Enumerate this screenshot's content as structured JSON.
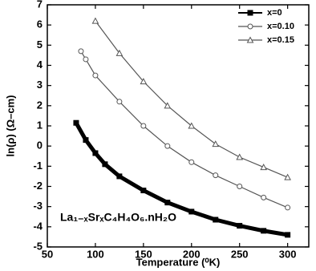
{
  "chart_data": {
    "type": "line",
    "xlabel": "Temperature (⁰K)",
    "ylabel": "ln(ρ) (Ω–cm)",
    "annotation": "La₁₋ₓSrₓC₄H₄O₆.nH₂O",
    "xlim": [
      50,
      322
    ],
    "ylim": [
      -5,
      7
    ],
    "xticks": [
      50,
      100,
      150,
      200,
      250,
      300
    ],
    "yticks": [
      -5,
      -4,
      -3,
      -2,
      -1,
      0,
      1,
      2,
      3,
      4,
      5,
      6,
      7
    ],
    "legend": "upper right",
    "series": [
      {
        "name": "x=0",
        "color": "#000000",
        "marker": "square-filled",
        "x": [
          80,
          90,
          100,
          110,
          125,
          150,
          175,
          200,
          225,
          250,
          275,
          300
        ],
        "values": [
          1.15,
          0.3,
          -0.35,
          -0.9,
          -1.5,
          -2.2,
          -2.8,
          -3.25,
          -3.65,
          -3.95,
          -4.2,
          -4.4
        ]
      },
      {
        "name": "x=0.10",
        "color": "#555555",
        "marker": "circle-open",
        "x": [
          85,
          90,
          100,
          125,
          150,
          175,
          200,
          225,
          250,
          275,
          300
        ],
        "values": [
          4.7,
          4.3,
          3.5,
          2.2,
          1.0,
          0.0,
          -0.8,
          -1.45,
          -2.0,
          -2.55,
          -3.05
        ]
      },
      {
        "name": "x=0.15",
        "color": "#555555",
        "marker": "triangle-open",
        "x": [
          100,
          125,
          150,
          175,
          200,
          225,
          250,
          275,
          300
        ],
        "values": [
          6.2,
          4.6,
          3.2,
          2.0,
          1.0,
          0.1,
          -0.55,
          -1.05,
          -1.55
        ]
      }
    ]
  }
}
